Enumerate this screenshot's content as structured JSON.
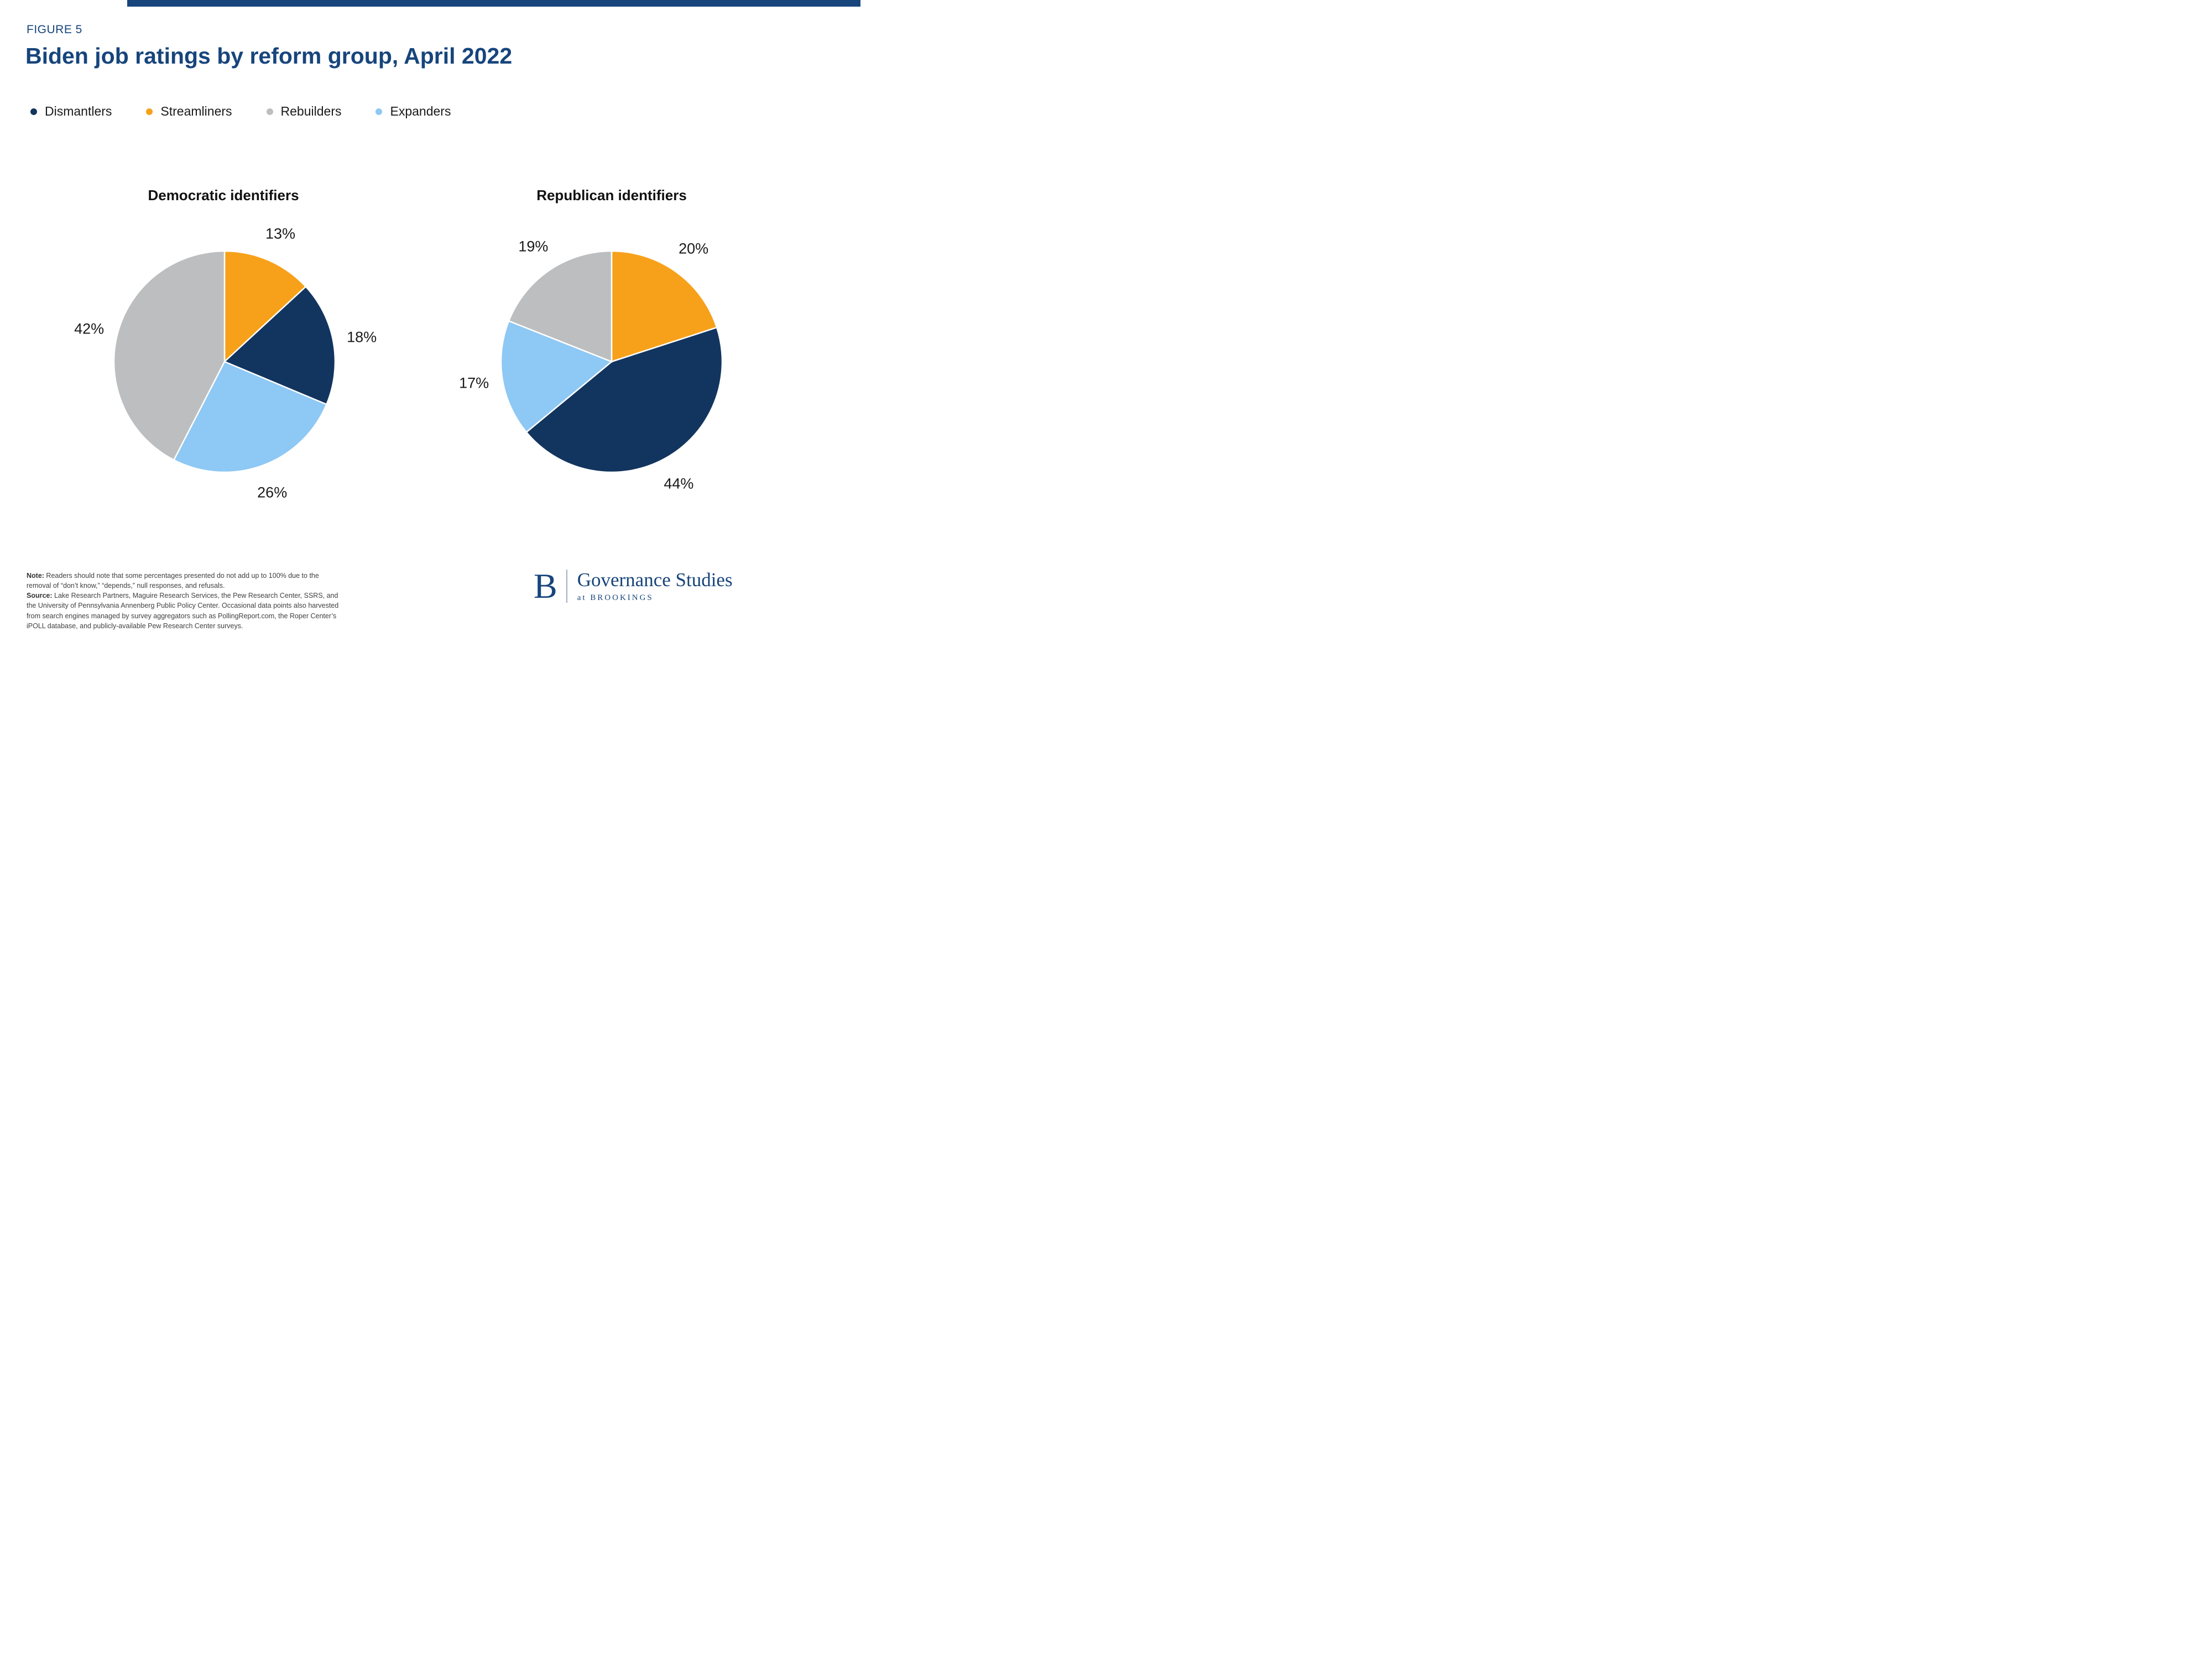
{
  "page": {
    "figure_label": "FIGURE 5",
    "title": "Biden job ratings by reform group, April 2022"
  },
  "colors": {
    "accent_navy": "#17457C",
    "dismantlers": "#12355F",
    "streamliners": "#F7A11A",
    "rebuilders": "#BCBEC0",
    "expanders": "#8EC8F4"
  },
  "legend": [
    {
      "label": "Dismantlers",
      "color": "#12355F"
    },
    {
      "label": "Streamliners",
      "color": "#F7A11A"
    },
    {
      "label": "Rebuilders",
      "color": "#BCBEC0"
    },
    {
      "label": "Expanders",
      "color": "#8EC8F4"
    }
  ],
  "chart_data": [
    {
      "type": "pie",
      "title": "Democratic identifiers",
      "categories": [
        "Streamliners",
        "Dismantlers",
        "Expanders",
        "Rebuilders"
      ],
      "values": [
        13,
        18,
        26,
        42
      ],
      "labels": [
        "13%",
        "18%",
        "26%",
        "42%"
      ],
      "colors": [
        "#F7A11A",
        "#12355F",
        "#8EC8F4",
        "#BCBEC0"
      ],
      "start_angle_deg": 0,
      "direction": "clockwise"
    },
    {
      "type": "pie",
      "title": "Republican identifiers",
      "categories": [
        "Streamliners",
        "Dismantlers",
        "Expanders",
        "Rebuilders"
      ],
      "values": [
        20,
        44,
        17,
        19
      ],
      "labels": [
        "20%",
        "44%",
        "17%",
        "19%"
      ],
      "colors": [
        "#F7A11A",
        "#12355F",
        "#8EC8F4",
        "#BCBEC0"
      ],
      "start_angle_deg": 0,
      "direction": "clockwise"
    }
  ],
  "footer": {
    "note_label": "Note:",
    "note_text": " Readers should note that some percentages presented do not add up to 100% due to the removal of “don’t know,” “depends,” null responses, and refusals.",
    "source_label": "Source:",
    "source_text": " Lake Research Partners, Maguire Research Services, the Pew Research Center, SSRS, and the University of Pennsylvania Annenberg Public Policy Center. Occasional data points also harvested from search engines managed by survey aggregators such as PollingReport.com, the Roper Center’s iPOLL database, and publicly-available Pew Research Center surveys.",
    "logo": {
      "letter": "B",
      "name": "Governance Studies",
      "sub": "at BROOKINGS"
    }
  }
}
